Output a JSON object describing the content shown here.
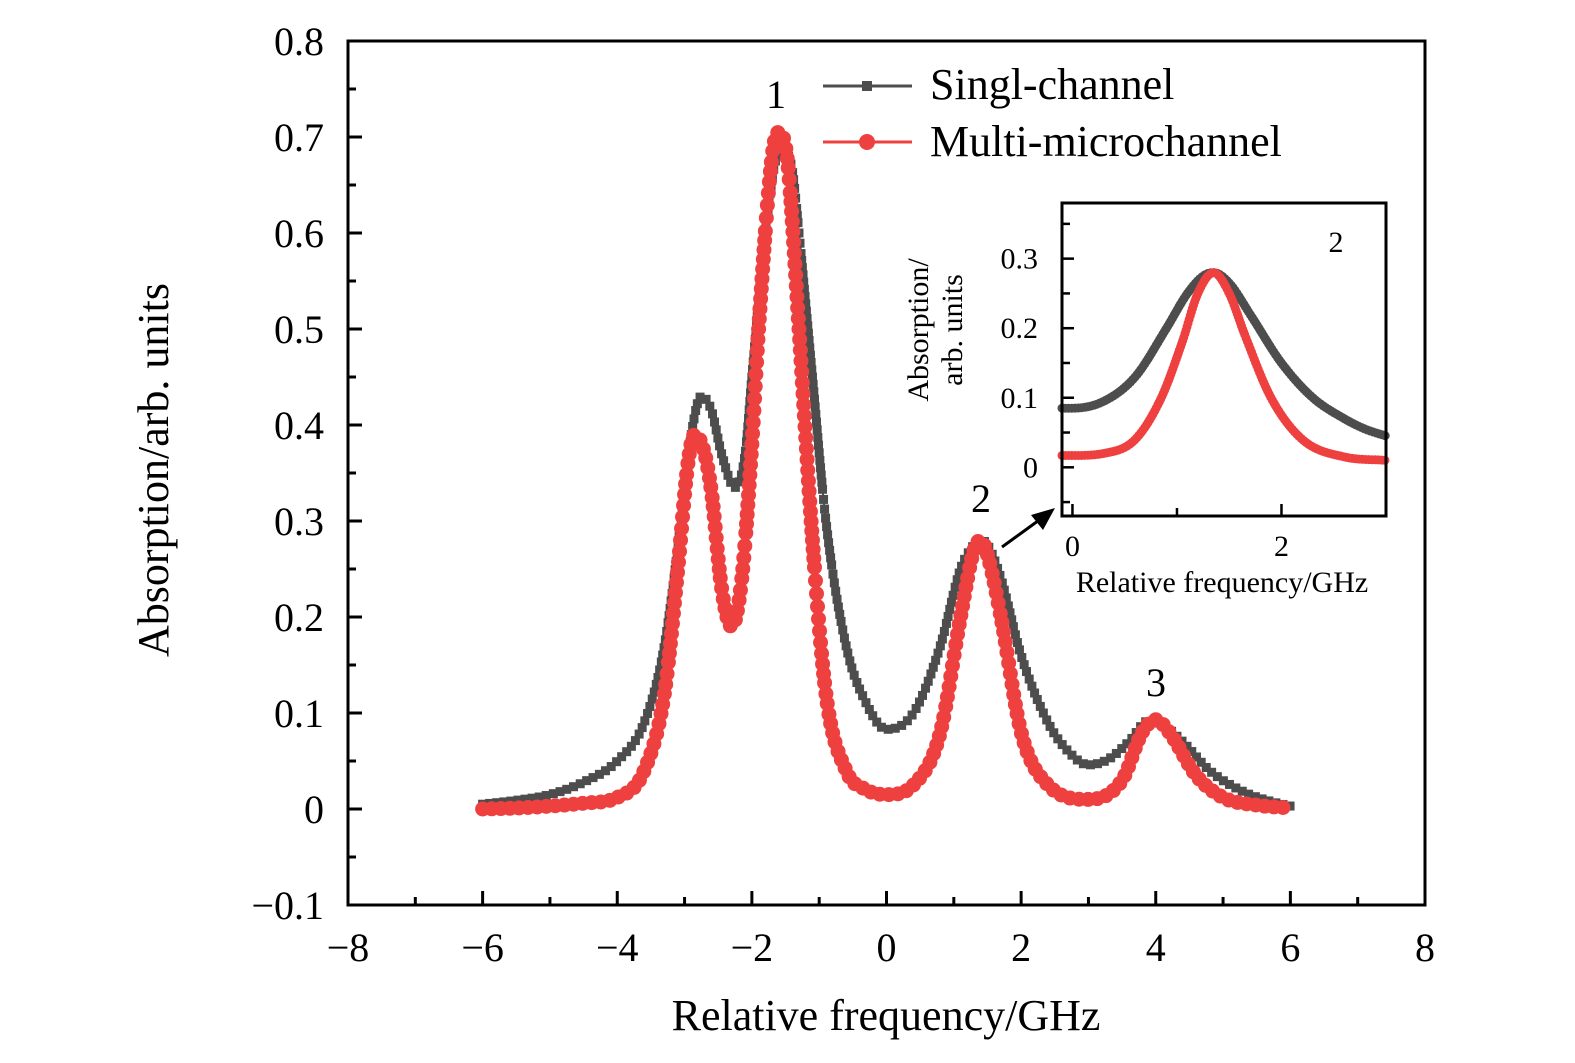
{
  "chart_data": [
    {
      "type": "line",
      "title": "",
      "xlabel": "Relative frequency/GHz",
      "ylabel": "Absorption/arb. units",
      "xlim": [
        -8,
        8
      ],
      "ylim": [
        -0.1,
        0.8
      ],
      "xticks": [
        -8,
        -6,
        -4,
        -2,
        0,
        2,
        4,
        6,
        8
      ],
      "xtick_labels": [
        "−8",
        "−6",
        "−4",
        "−2",
        "0",
        "2",
        "4",
        "6",
        "8"
      ],
      "yticks": [
        -0.1,
        0,
        0.1,
        0.2,
        0.3,
        0.4,
        0.5,
        0.6,
        0.7,
        0.8
      ],
      "ytick_labels": [
        "−0.1",
        "0",
        "0.1",
        "0.2",
        "0.3",
        "0.4",
        "0.5",
        "0.6",
        "0.7",
        "0.8"
      ],
      "grid": false,
      "legend_position": "top-right",
      "annotations": [
        {
          "text": "1",
          "x": -1.6,
          "y": 0.74
        },
        {
          "text": "2",
          "x": 1.4,
          "y": 0.31
        },
        {
          "text": "3",
          "x": 4.0,
          "y": 0.12
        }
      ],
      "series": [
        {
          "name": "Singl-channel",
          "color": "#4d4d4d",
          "marker": "square",
          "x": [
            -6.0,
            -5.5,
            -5.0,
            -4.5,
            -4.0,
            -3.6,
            -3.3,
            -3.0,
            -2.9,
            -2.75,
            -2.6,
            -2.45,
            -2.25,
            -2.1,
            -2.0,
            -1.8,
            -1.65,
            -1.55,
            -1.4,
            -1.3,
            -1.1,
            -0.9,
            -0.6,
            -0.3,
            0.0,
            0.4,
            0.8,
            1.1,
            1.3,
            1.4,
            1.5,
            1.7,
            2.0,
            2.4,
            2.7,
            3.0,
            3.3,
            3.6,
            3.9,
            4.1,
            4.4,
            4.8,
            5.3,
            5.7,
            6.0
          ],
          "y": [
            0.005,
            0.009,
            0.015,
            0.028,
            0.05,
            0.09,
            0.17,
            0.33,
            0.39,
            0.43,
            0.415,
            0.37,
            0.335,
            0.37,
            0.45,
            0.6,
            0.675,
            0.685,
            0.665,
            0.6,
            0.45,
            0.3,
            0.17,
            0.11,
            0.083,
            0.1,
            0.17,
            0.25,
            0.275,
            0.28,
            0.275,
            0.24,
            0.16,
            0.09,
            0.06,
            0.046,
            0.052,
            0.07,
            0.092,
            0.088,
            0.07,
            0.04,
            0.018,
            0.008,
            0.003
          ]
        },
        {
          "name": "Multi-microchannel",
          "color": "#ef4040",
          "marker": "circle",
          "x": [
            -6.0,
            -5.5,
            -5.0,
            -4.5,
            -4.0,
            -3.6,
            -3.3,
            -3.1,
            -2.95,
            -2.85,
            -2.7,
            -2.6,
            -2.45,
            -2.3,
            -2.15,
            -2.0,
            -1.9,
            -1.7,
            -1.6,
            -1.5,
            -1.45,
            -1.3,
            -1.1,
            -0.9,
            -0.6,
            -0.3,
            0.0,
            0.4,
            0.8,
            1.1,
            1.3,
            1.4,
            1.5,
            1.7,
            2.0,
            2.4,
            3.0,
            3.5,
            3.8,
            4.0,
            4.2,
            4.6,
            5.0,
            5.5,
            6.0
          ],
          "y": [
            0.0,
            0.001,
            0.003,
            0.006,
            0.012,
            0.04,
            0.12,
            0.25,
            0.36,
            0.39,
            0.37,
            0.33,
            0.23,
            0.19,
            0.24,
            0.38,
            0.5,
            0.68,
            0.705,
            0.69,
            0.66,
            0.5,
            0.28,
            0.12,
            0.04,
            0.02,
            0.015,
            0.025,
            0.08,
            0.2,
            0.27,
            0.28,
            0.265,
            0.2,
            0.08,
            0.025,
            0.01,
            0.03,
            0.08,
            0.093,
            0.08,
            0.035,
            0.012,
            0.004,
            0.001
          ]
        }
      ]
    },
    {
      "type": "line",
      "title": "2",
      "xlabel": "Relative frequency/GHz",
      "ylabel": "Absorption/ arb. units",
      "ylabel_lines": [
        "Absorption/",
        "arb. units"
      ],
      "xlim": [
        -0.1,
        3.0
      ],
      "ylim": [
        -0.07,
        0.38
      ],
      "xticks": [
        0,
        2
      ],
      "xtick_labels": [
        "0",
        "2"
      ],
      "yticks": [
        0,
        0.1,
        0.2,
        0.3
      ],
      "ytick_labels": [
        "0",
        "0.1",
        "0.2",
        "0.3"
      ],
      "grid": false,
      "series": [
        {
          "name": "Singl-channel",
          "color": "#4d4d4d",
          "x": [
            -0.1,
            0.0,
            0.3,
            0.6,
            0.9,
            1.1,
            1.25,
            1.35,
            1.5,
            1.7,
            2.0,
            2.3,
            2.6,
            2.8,
            3.0
          ],
          "y": [
            0.085,
            0.085,
            0.095,
            0.13,
            0.2,
            0.25,
            0.275,
            0.28,
            0.265,
            0.22,
            0.15,
            0.1,
            0.07,
            0.055,
            0.045
          ]
        },
        {
          "name": "Multi-microchannel",
          "color": "#ef4040",
          "x": [
            -0.1,
            0.0,
            0.3,
            0.6,
            0.85,
            1.05,
            1.2,
            1.35,
            1.5,
            1.65,
            1.9,
            2.2,
            2.6,
            3.0
          ],
          "y": [
            0.017,
            0.017,
            0.02,
            0.04,
            0.1,
            0.18,
            0.25,
            0.28,
            0.25,
            0.19,
            0.1,
            0.04,
            0.015,
            0.01
          ]
        }
      ]
    }
  ],
  "legend": {
    "items": [
      {
        "label": "Singl-channel",
        "color": "#4d4d4d",
        "marker": "square"
      },
      {
        "label": "Multi-microchannel",
        "color": "#ef4040",
        "marker": "circle"
      }
    ]
  },
  "labels": {
    "main_xlabel": "Relative frequency/GHz",
    "main_ylabel": "Absorption/arb. units",
    "inset_xlabel": "Relative frequency/GHz",
    "inset_ylabel_line1": "Absorption/",
    "inset_ylabel_line2": "arb. units",
    "inset_peak": "2",
    "peak1": "1",
    "peak2": "2",
    "peak3": "3"
  }
}
